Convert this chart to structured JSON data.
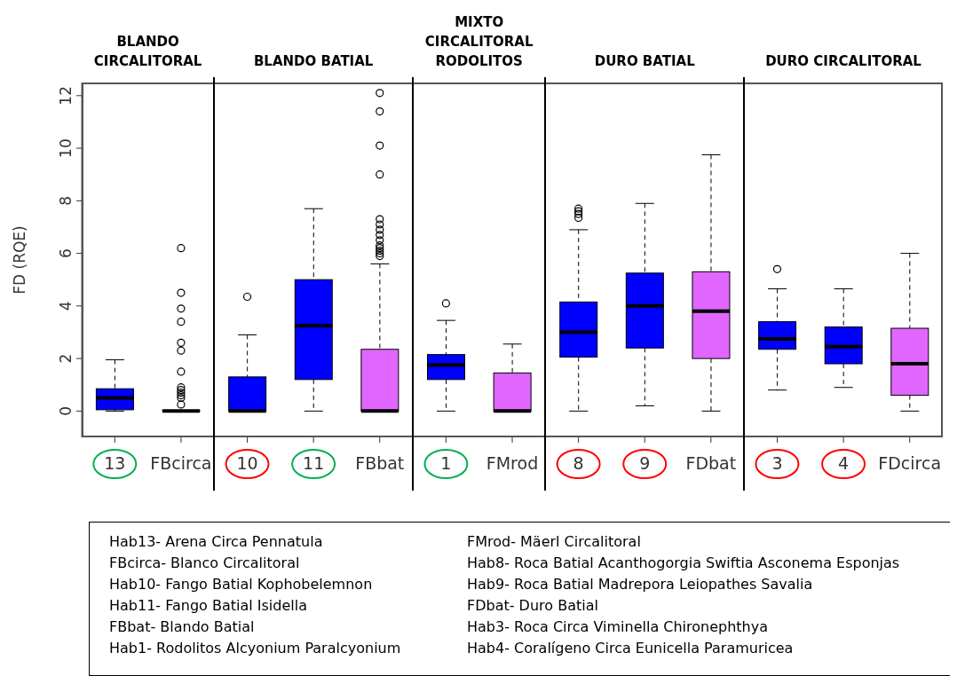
{
  "chart_data": {
    "type": "box",
    "categories": [
      "13",
      "FBcirca",
      "10",
      "11",
      "FBbat",
      "1",
      "FMrod",
      "8",
      "9",
      "FDbat",
      "3",
      "4",
      "FDcirca"
    ],
    "colors": [
      "#0000ff",
      "#e066ff",
      "#0000ff",
      "#0000ff",
      "#e066ff",
      "#0000ff",
      "#e066ff",
      "#0000ff",
      "#0000ff",
      "#e066ff",
      "#0000ff",
      "#0000ff",
      "#e066ff"
    ],
    "boxes": [
      {
        "low": 0,
        "q1": 0.05,
        "median": 0.5,
        "q3": 0.85,
        "high": 1.95
      },
      {
        "low": 0,
        "q1": 0,
        "median": 0,
        "q3": 0.02,
        "high": 0,
        "outliers": [
          0.25,
          0.5,
          0.6,
          0.7,
          0.8,
          0.9,
          1.5,
          2.3,
          2.6,
          3.4,
          3.9,
          4.5,
          6.2
        ]
      },
      {
        "low": 0,
        "q1": 0,
        "median": 0,
        "q3": 1.3,
        "high": 2.9,
        "outliers": [
          4.35
        ]
      },
      {
        "low": 0,
        "q1": 1.2,
        "median": 3.25,
        "q3": 5.0,
        "high": 7.7
      },
      {
        "low": 0,
        "q1": 0,
        "median": 0,
        "q3": 2.35,
        "high": 5.6,
        "outliers": [
          5.9,
          6.0,
          6.1,
          6.2,
          6.3,
          6.5,
          6.7,
          6.9,
          7.1,
          7.3,
          9.0,
          10.1,
          11.4,
          12.1
        ]
      },
      {
        "low": 0,
        "q1": 1.2,
        "median": 1.75,
        "q3": 2.15,
        "high": 3.45,
        "outliers": [
          4.1
        ]
      },
      {
        "low": 0,
        "q1": 0,
        "median": 0,
        "q3": 1.45,
        "high": 2.55
      },
      {
        "low": 0,
        "q1": 2.05,
        "median": 3.0,
        "q3": 4.15,
        "high": 6.9,
        "outliers": [
          7.35,
          7.5,
          7.6,
          7.7
        ]
      },
      {
        "low": 0.2,
        "q1": 2.4,
        "median": 4.0,
        "q3": 5.25,
        "high": 7.9
      },
      {
        "low": 0,
        "q1": 2.0,
        "median": 3.8,
        "q3": 5.3,
        "high": 9.75
      },
      {
        "low": 0.8,
        "q1": 2.35,
        "median": 2.75,
        "q3": 3.4,
        "high": 4.65,
        "outliers": [
          5.4
        ]
      },
      {
        "low": 0.9,
        "q1": 1.8,
        "median": 2.45,
        "q3": 3.2,
        "high": 4.65
      },
      {
        "low": 0,
        "q1": 0.6,
        "median": 1.8,
        "q3": 3.15,
        "high": 6.0
      }
    ],
    "ylabel": "FD (RQE)",
    "ylim": [
      -1,
      12.5
    ],
    "yticks": [
      0,
      2,
      4,
      6,
      8,
      10,
      12
    ],
    "annotations": [
      "BLANDO CIRCALITORAL",
      "BLANDO BATIAL",
      "MIXTO CIRCALITORAL RODOLITOS",
      "DURO BATIAL",
      "DURO CIRCALITORAL",
      "Hab13- Arena Circa Pennatula",
      "FBcirca- Blanco Circalitoral",
      "Hab10- Fango Batial Kophobelemnon",
      "Hab11- Fango Batial Isidella",
      "FBbat- Blando Batial",
      "Hab1- Rodolitos Alcyonium Paralcyonium",
      "FMrod- Mäerl Circalitoral",
      "Hab8- Roca Batial Acanthogorgia Swiftia Asconema Esponjas",
      "Hab9- Roca Batial Madrepora Leiopathes Savalia",
      "FDbat- Duro Batial",
      "Hab3- Roca Circa Viminella Chironephthya",
      "Hab4- Coralígeno Circa Eunicella Paramuricea"
    ]
  }
}
